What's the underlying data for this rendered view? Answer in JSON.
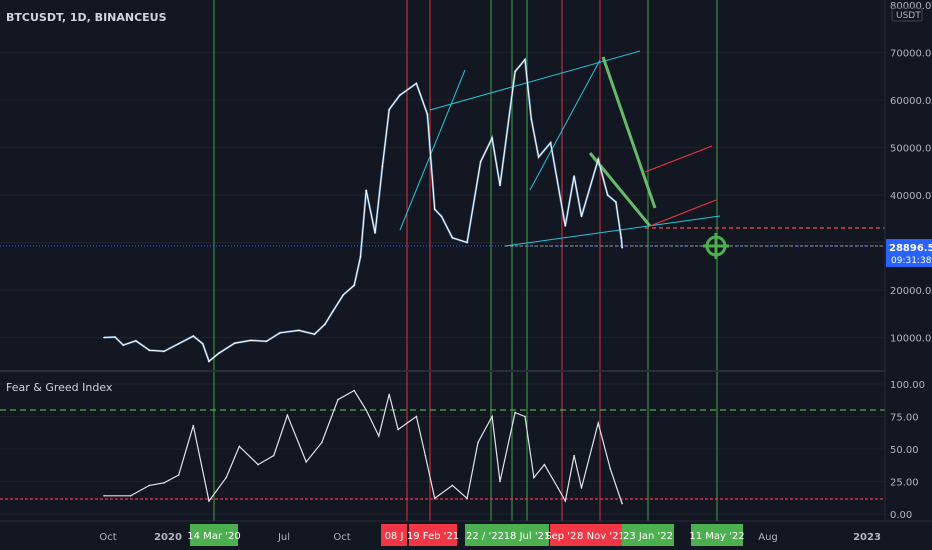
{
  "header": {
    "title": "BTCUSDT, 1D, BINANCEUS"
  },
  "indicator": {
    "title": "Fear & Greed Index"
  },
  "price_axis": {
    "currency": "USDT",
    "top_label": "80000.00",
    "ticks": [
      "70000.00",
      "60000.00",
      "50000.00",
      "40000.00",
      "30000.00",
      "20000.00",
      "10000.00"
    ]
  },
  "index_axis": {
    "ticks": [
      "100.00",
      "75.00",
      "50.00",
      "25.00",
      "0.00"
    ]
  },
  "last_price": {
    "value": "28896.51",
    "countdown": "09:31:38"
  },
  "time_axis": {
    "ticks": [
      "Oct",
      "2020",
      "Jul",
      "Oct",
      "Aug",
      "2023"
    ],
    "event_labels": [
      {
        "text": "14 Mar '20",
        "color": "#4caf50"
      },
      {
        "text": "08 J",
        "color": "#f23645"
      },
      {
        "text": "19 Feb '21",
        "color": "#f23645"
      },
      {
        "text": "22 / '22",
        "color": "#4caf50"
      },
      {
        "text": "18 Jul '21",
        "color": "#4caf50"
      },
      {
        "text": "Sep '21",
        "color": "#f23645"
      },
      {
        "text": "8 Nov '21",
        "color": "#f23645"
      },
      {
        "text": "23 Jan '22",
        "color": "#4caf50"
      },
      {
        "text": "11 May '22",
        "color": "#4caf50"
      }
    ]
  },
  "colors": {
    "background": "#131722",
    "price_line": "#ffffff",
    "bullish_event": "#4caf50",
    "bearish_event": "#f23645",
    "channel": "#26c6da",
    "axis_text": "#b2b5be",
    "price_tag": "#2962ff"
  },
  "chart_data": [
    {
      "type": "line",
      "series": [
        {
          "x": [
            "2019-08-25",
            "2019-09-15",
            "2019-10-01",
            "2019-10-25",
            "2019-11-20",
            "2019-12-18",
            "2020-01-15",
            "2020-02-12",
            "2020-03-01",
            "2020-03-13",
            "2020-04-01",
            "2020-05-01",
            "2020-06-01",
            "2020-07-01",
            "2020-07-27",
            "2020-09-01",
            "2020-10-01",
            "2020-10-21",
            "2020-11-05",
            "2020-11-25",
            "2020-12-16",
            "2020-12-28",
            "2021-01-08",
            "2021-01-25",
            "2021-02-08",
            "2021-02-21",
            "2021-03-13",
            "2021-04-14",
            "2021-05-05",
            "2021-05-19",
            "2021-06-01",
            "2021-06-22",
            "2021-07-20",
            "2021-08-15",
            "2021-09-06",
            "2021-09-21",
            "2021-10-20",
            "2021-11-08",
            "2021-11-20",
            "2021-12-04",
            "2021-12-27",
            "2022-01-24",
            "2022-02-10",
            "2022-02-24",
            "2022-03-28",
            "2022-04-15",
            "2022-05-01",
            "2022-05-11",
            "2022-05-13"
          ],
          "values": [
            10000,
            10100,
            8400,
            9300,
            7300,
            7100,
            8700,
            10300,
            8700,
            5000,
            6700,
            8800,
            9400,
            9200,
            11000,
            11500,
            10700,
            12800,
            15500,
            19000,
            21000,
            27000,
            41000,
            32000,
            46000,
            58000,
            61000,
            63500,
            57000,
            37000,
            35500,
            31000,
            30000,
            47000,
            52000,
            42000,
            66000,
            68500,
            56000,
            48000,
            51000,
            33500,
            44000,
            35500,
            47500,
            40000,
            38500,
            31000,
            28896
          ]
        }
      ],
      "ylim": [
        0,
        80000
      ]
    },
    {
      "type": "line",
      "series": [
        {
          "x": [
            "2019-08-25",
            "2019-10-15",
            "2019-11-20",
            "2019-12-18",
            "2020-01-15",
            "2020-02-12",
            "2020-03-13",
            "2020-04-15",
            "2020-05-10",
            "2020-06-15",
            "2020-07-15",
            "2020-08-10",
            "2020-09-15",
            "2020-10-15",
            "2020-11-15",
            "2020-12-16",
            "2021-01-08",
            "2021-02-01",
            "2021-02-21",
            "2021-03-10",
            "2021-04-14",
            "2021-05-01",
            "2021-05-19",
            "2021-06-22",
            "2021-07-20",
            "2021-08-10",
            "2021-09-06",
            "2021-09-21",
            "2021-10-20",
            "2021-11-08",
            "2021-11-25",
            "2021-12-15",
            "2022-01-10",
            "2022-01-24",
            "2022-02-10",
            "2022-02-24",
            "2022-03-28",
            "2022-04-20",
            "2022-05-11",
            "2022-05-13"
          ],
          "values": [
            14,
            14,
            22,
            24,
            30,
            68,
            10,
            28,
            52,
            38,
            45,
            76,
            40,
            55,
            88,
            95,
            80,
            60,
            92,
            65,
            75,
            45,
            12,
            22,
            12,
            55,
            75,
            25,
            78,
            75,
            28,
            38,
            20,
            10,
            45,
            20,
            70,
            35,
            10,
            8
          ]
        }
      ],
      "ylim": [
        0,
        100
      ]
    }
  ]
}
